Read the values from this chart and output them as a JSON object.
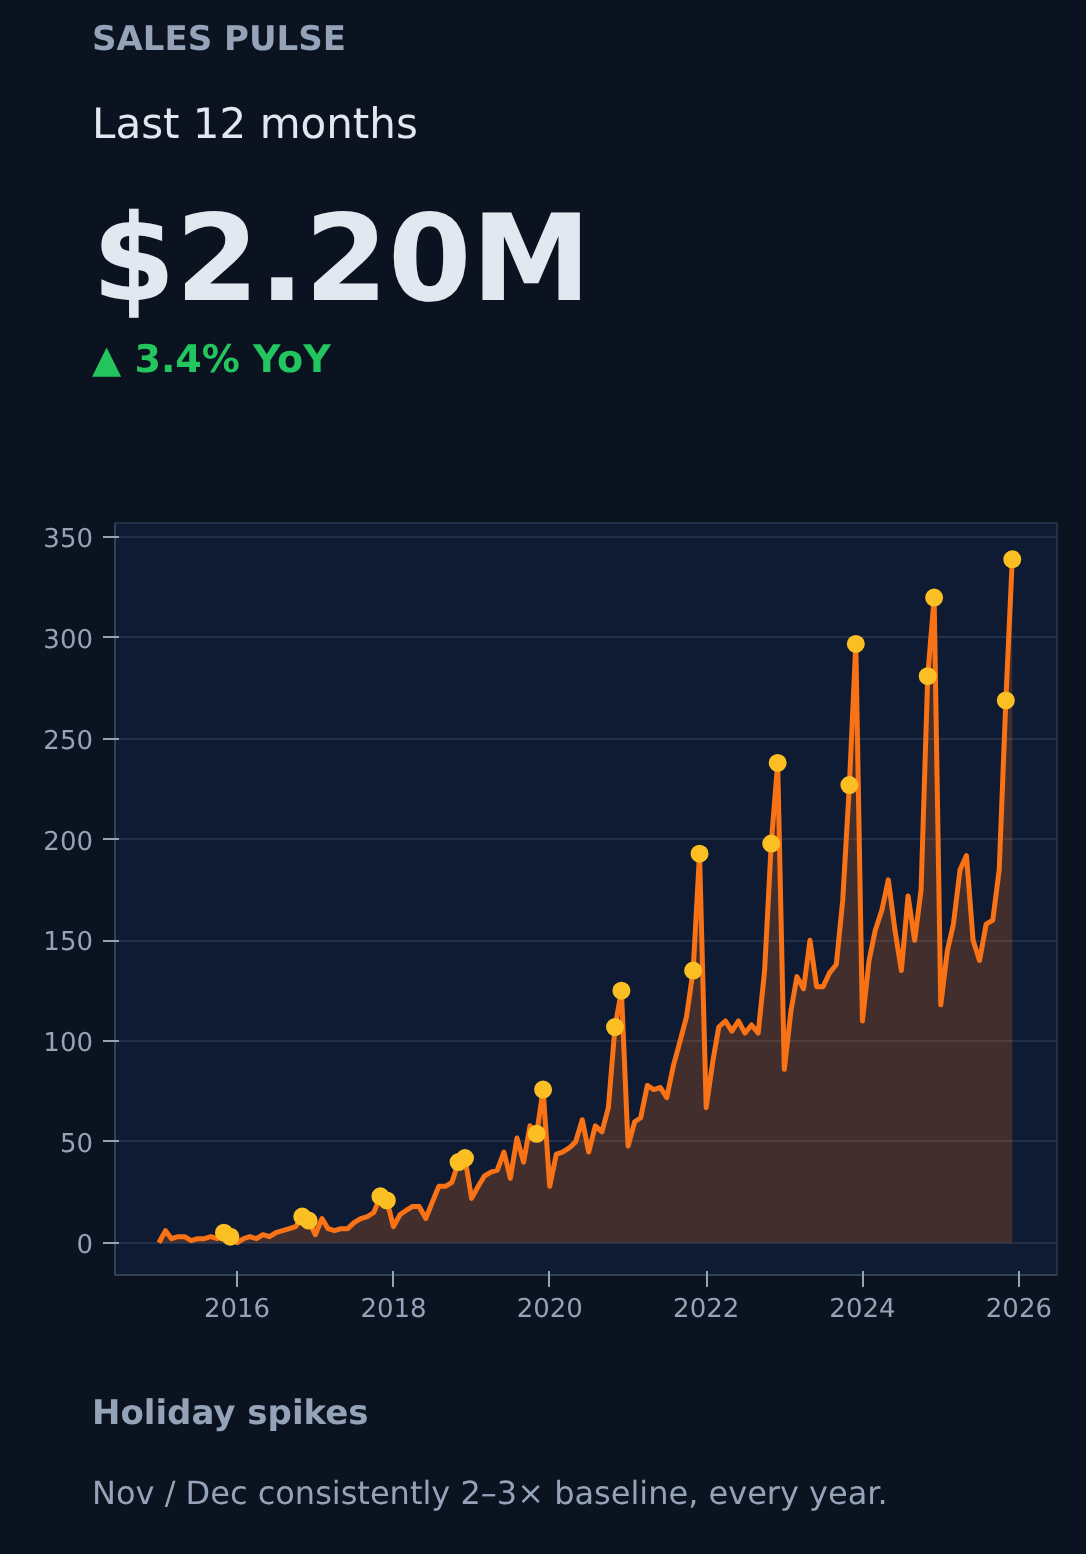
{
  "chart_data": {
    "type": "area",
    "title": "SALES PULSE",
    "subtitle": "Last 12 months",
    "annotations": [
      "$2.20M",
      "▲ 3.4% YoY",
      "Holiday spikes",
      "Nov / Dec consistently 2–3× baseline, every year."
    ],
    "x": [
      "2015-01",
      "2015-02",
      "2015-03",
      "2015-04",
      "2015-05",
      "2015-06",
      "2015-07",
      "2015-08",
      "2015-09",
      "2015-10",
      "2015-11",
      "2015-12",
      "2016-01",
      "2016-02",
      "2016-03",
      "2016-04",
      "2016-05",
      "2016-06",
      "2016-07",
      "2016-08",
      "2016-09",
      "2016-10",
      "2016-11",
      "2016-12",
      "2017-01",
      "2017-02",
      "2017-03",
      "2017-04",
      "2017-05",
      "2017-06",
      "2017-07",
      "2017-08",
      "2017-09",
      "2017-10",
      "2017-11",
      "2017-12",
      "2018-01",
      "2018-02",
      "2018-03",
      "2018-04",
      "2018-05",
      "2018-06",
      "2018-07",
      "2018-08",
      "2018-09",
      "2018-10",
      "2018-11",
      "2018-12",
      "2019-01",
      "2019-02",
      "2019-03",
      "2019-04",
      "2019-05",
      "2019-06",
      "2019-07",
      "2019-08",
      "2019-09",
      "2019-10",
      "2019-11",
      "2019-12",
      "2020-01",
      "2020-02",
      "2020-03",
      "2020-04",
      "2020-05",
      "2020-06",
      "2020-07",
      "2020-08",
      "2020-09",
      "2020-10",
      "2020-11",
      "2020-12",
      "2021-01",
      "2021-02",
      "2021-03",
      "2021-04",
      "2021-05",
      "2021-06",
      "2021-07",
      "2021-08",
      "2021-09",
      "2021-10",
      "2021-11",
      "2021-12",
      "2022-01",
      "2022-02",
      "2022-03",
      "2022-04",
      "2022-05",
      "2022-06",
      "2022-07",
      "2022-08",
      "2022-09",
      "2022-10",
      "2022-11",
      "2022-12",
      "2023-01",
      "2023-02",
      "2023-03",
      "2023-04",
      "2023-05",
      "2023-06",
      "2023-07",
      "2023-08",
      "2023-09",
      "2023-10",
      "2023-11",
      "2023-12",
      "2024-01",
      "2024-02",
      "2024-03",
      "2024-04",
      "2024-05",
      "2024-06",
      "2024-07",
      "2024-08",
      "2024-09",
      "2024-10",
      "2024-11",
      "2024-12",
      "2025-01",
      "2025-02",
      "2025-03",
      "2025-04",
      "2025-05",
      "2025-06",
      "2025-07",
      "2025-08",
      "2025-09",
      "2025-10",
      "2025-11",
      "2025-12"
    ],
    "series": [
      {
        "color": "#f97316",
        "values": [
          0,
          6,
          2,
          3,
          3,
          1,
          2,
          2,
          3,
          2,
          5,
          3,
          0,
          2,
          3,
          2,
          4,
          3,
          5,
          6,
          7,
          8,
          13,
          11,
          4,
          12,
          7,
          6,
          7,
          7,
          10,
          12,
          13,
          15,
          23,
          21,
          8,
          14,
          16,
          18,
          18,
          12,
          20,
          28,
          28,
          30,
          40,
          42,
          22,
          28,
          33,
          35,
          36,
          45,
          32,
          52,
          40,
          58,
          54,
          76,
          28,
          44,
          45,
          47,
          50,
          61,
          45,
          58,
          55,
          67,
          107,
          125,
          48,
          60,
          62,
          78,
          76,
          77,
          72,
          88,
          100,
          112,
          135,
          193,
          67,
          90,
          107,
          110,
          105,
          110,
          104,
          108,
          104,
          135,
          198,
          238,
          86,
          115,
          132,
          126,
          150,
          127,
          127,
          134,
          138,
          170,
          227,
          297,
          110,
          140,
          155,
          165,
          180,
          155,
          135,
          172,
          150,
          175,
          281,
          320,
          118,
          145,
          158,
          185,
          192,
          150,
          140,
          158,
          160,
          185,
          269,
          339
        ]
      },
      {
        "type": "scatter",
        "marker": "circle",
        "color": "#fbbf24",
        "x": [
          "2015-11",
          "2015-12",
          "2016-11",
          "2016-12",
          "2017-11",
          "2017-12",
          "2018-11",
          "2018-12",
          "2019-11",
          "2019-12",
          "2020-11",
          "2020-12",
          "2021-11",
          "2021-12",
          "2022-11",
          "2022-12",
          "2023-11",
          "2023-12",
          "2024-11",
          "2024-12",
          "2025-11",
          "2025-12"
        ],
        "values": [
          5,
          3,
          13,
          11,
          23,
          21,
          40,
          42,
          54,
          76,
          107,
          125,
          135,
          193,
          198,
          238,
          227,
          297,
          281,
          320,
          269,
          339
        ]
      }
    ],
    "xlim": [
      "2014-06-10",
      "2026-06-28"
    ],
    "xticks": [
      {
        "value": "2016-01-01",
        "label": "2016"
      },
      {
        "value": "2018-01-01",
        "label": "2018"
      },
      {
        "value": "2020-01-01",
        "label": "2020"
      },
      {
        "value": "2022-01-01",
        "label": "2022"
      },
      {
        "value": "2024-01-01",
        "label": "2024"
      },
      {
        "value": "2026-01-01",
        "label": "2026"
      }
    ],
    "ylim": [
      -16,
      357
    ],
    "yticks": [
      0,
      50,
      100,
      150,
      200,
      250,
      300,
      350
    ],
    "grid": "y",
    "line_style": "solid"
  }
}
